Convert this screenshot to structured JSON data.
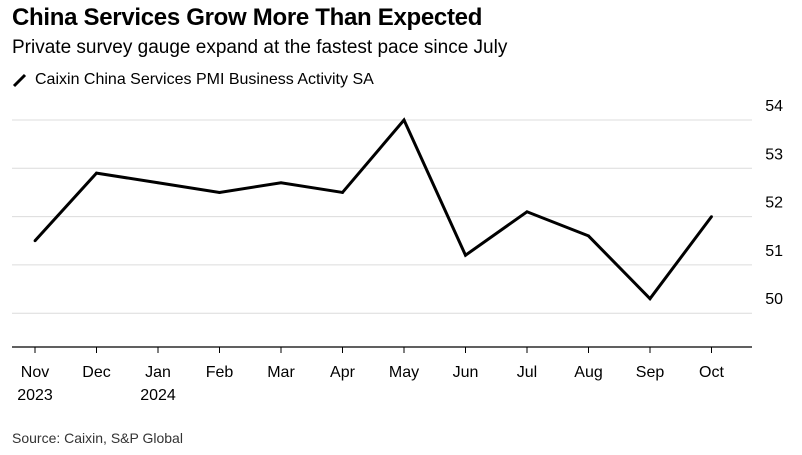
{
  "title": "China Services Grow More Than Expected",
  "subtitle": "Private survey gauge expand at the fastest pace since July",
  "source": "Source: Caixin, S&P Global",
  "colors": {
    "line": "#000000",
    "grid": "#dcdcdc",
    "axis": "#000000"
  },
  "chart_data": {
    "type": "line",
    "categories": [
      "Nov",
      "Dec",
      "Jan",
      "Feb",
      "Mar",
      "Apr",
      "May",
      "Jun",
      "Jul",
      "Aug",
      "Sep",
      "Oct"
    ],
    "category_sublabels": [
      "2023",
      "",
      "2024",
      "",
      "",
      "",
      "",
      "",
      "",
      "",
      "",
      ""
    ],
    "series": [
      {
        "name": "Caixin China Services PMI Business Activity SA",
        "values": [
          51.5,
          52.9,
          52.7,
          52.5,
          52.7,
          52.5,
          54.0,
          51.2,
          52.1,
          51.6,
          50.3,
          52.0
        ]
      }
    ],
    "yticks": [
      50,
      51,
      52,
      53,
      54
    ],
    "ylim": [
      49.3,
      54.0
    ],
    "y_axis_position": "right",
    "grid": true
  }
}
